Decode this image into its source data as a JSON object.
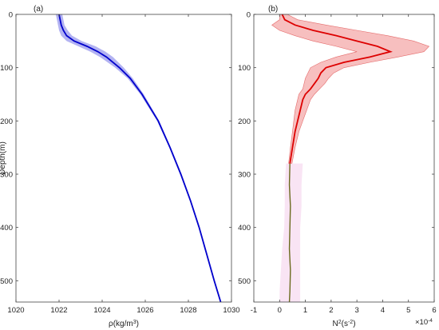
{
  "chart_data": [
    {
      "type": "line",
      "panel_label": "(a)",
      "xlabel": "ρ(kg/m³)",
      "ylabel": "Depth(m)",
      "xlim": [
        1020,
        1030
      ],
      "ylim": [
        540,
        0
      ],
      "y_reversed": true,
      "xticks": [
        1020,
        1022,
        1024,
        1026,
        1028,
        1030
      ],
      "yticks": [
        0,
        100,
        200,
        300,
        400,
        500
      ],
      "grid": false,
      "colors": {
        "line": "#0000cc",
        "band": "#9999ee"
      },
      "series": [
        {
          "depth": [
            0,
            10,
            20,
            30,
            40,
            50,
            60,
            70,
            80,
            100,
            120,
            150,
            200,
            250,
            300,
            350,
            400,
            450,
            500,
            540
          ],
          "values": [
            1022.0,
            1022.05,
            1022.1,
            1022.2,
            1022.35,
            1022.7,
            1023.3,
            1023.8,
            1024.2,
            1024.8,
            1025.3,
            1025.85,
            1026.6,
            1027.15,
            1027.65,
            1028.1,
            1028.5,
            1028.85,
            1029.2,
            1029.5
          ],
          "band_halfwidth": [
            0.15,
            0.15,
            0.15,
            0.2,
            0.25,
            0.35,
            0.4,
            0.35,
            0.3,
            0.2,
            0.12,
            0.08,
            0.05,
            0.04,
            0.04,
            0.03,
            0.03,
            0.03,
            0.03,
            0.03
          ]
        }
      ]
    },
    {
      "type": "line",
      "panel_label": "(b)",
      "xlabel": "N²(s⁻²)",
      "x_multiplier": "×10⁻⁴",
      "xlim": [
        -1,
        6
      ],
      "ylim": [
        540,
        0
      ],
      "y_reversed": true,
      "xticks": [
        -1,
        0,
        1,
        2,
        3,
        4,
        5,
        6
      ],
      "yticks": [
        0,
        100,
        200,
        300,
        400,
        500
      ],
      "grid": false,
      "colors": {
        "line": "#dd0000",
        "band": "#f4aaaa",
        "deep_line": "#6b6b1f",
        "deep_band": "#f6d8f0"
      },
      "series": [
        {
          "depth": [
            0,
            10,
            20,
            30,
            40,
            50,
            60,
            70,
            80,
            90,
            100,
            110,
            120,
            130,
            140,
            150,
            160,
            180,
            200,
            220,
            250,
            280
          ],
          "values": [
            0.1,
            0.2,
            0.6,
            1.3,
            2.2,
            3.0,
            3.8,
            4.3,
            3.5,
            2.5,
            1.8,
            1.6,
            1.5,
            1.35,
            1.2,
            1.0,
            0.9,
            0.8,
            0.7,
            0.6,
            0.5,
            0.4
          ],
          "band_low": [
            0.0,
            0.0,
            -0.3,
            0.0,
            0.6,
            1.3,
            2.2,
            3.0,
            2.2,
            1.6,
            1.2,
            1.1,
            1.0,
            0.95,
            0.9,
            0.75,
            0.7,
            0.6,
            0.55,
            0.5,
            0.42,
            0.35
          ],
          "band_high": [
            0.3,
            0.7,
            1.8,
            3.0,
            4.2,
            5.2,
            5.8,
            5.6,
            4.6,
            3.5,
            2.5,
            2.1,
            1.9,
            1.75,
            1.55,
            1.35,
            1.2,
            1.05,
            0.9,
            0.75,
            0.6,
            0.48
          ]
        },
        {
          "depth": [
            280,
            320,
            360,
            400,
            440,
            480,
            520,
            540
          ],
          "values": [
            0.4,
            0.38,
            0.42,
            0.4,
            0.38,
            0.42,
            0.4,
            0.38
          ],
          "band_low": [
            0.25,
            0.2,
            0.2,
            0.18,
            0.1,
            0.05,
            0.0,
            0.0
          ],
          "band_high": [
            0.9,
            0.85,
            0.85,
            0.8,
            0.8,
            0.8,
            0.8,
            0.8
          ]
        }
      ]
    }
  ]
}
